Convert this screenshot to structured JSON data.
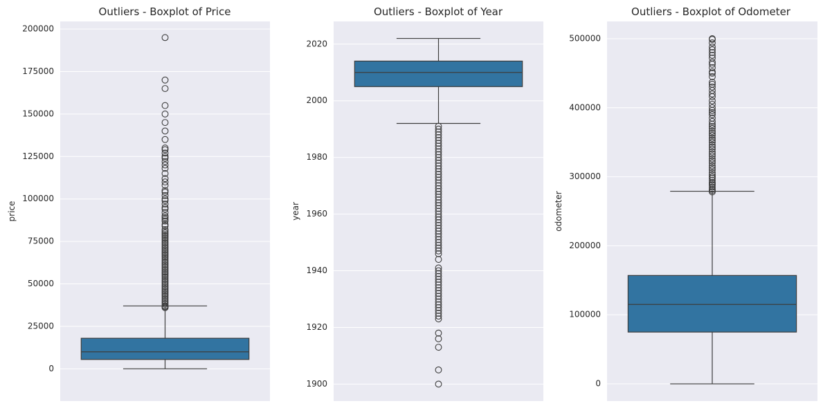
{
  "chart_data": [
    {
      "type": "box",
      "title": "Outliers - Boxplot of Price",
      "ylabel": "price",
      "ylim": [
        -19000,
        204500
      ],
      "yticks": [
        0,
        25000,
        50000,
        75000,
        100000,
        125000,
        150000,
        175000,
        200000
      ],
      "ytick_labels": [
        "0",
        "25000",
        "50000",
        "75000",
        "100000",
        "125000",
        "150000",
        "175000",
        "200000"
      ],
      "color": "#3274a1",
      "box": {
        "whisker_low": 0,
        "q1": 5500,
        "median": 10000,
        "q3": 18000,
        "whisker_high": 37000
      },
      "outliers": [
        36000,
        36500,
        37000,
        38000,
        39000,
        40000,
        41000,
        42000,
        43000,
        44000,
        45000,
        46000,
        47000,
        48000,
        49000,
        50000,
        51000,
        52000,
        53000,
        54000,
        55000,
        56000,
        57000,
        58000,
        59000,
        60000,
        61000,
        62000,
        63000,
        64000,
        65000,
        66000,
        67000,
        68000,
        69000,
        70000,
        71000,
        72000,
        73000,
        74000,
        75000,
        76000,
        77000,
        78000,
        79000,
        80000,
        81000,
        82000,
        84000,
        85000,
        87000,
        88000,
        89000,
        90000,
        92000,
        94000,
        95000,
        97000,
        99000,
        100000,
        102000,
        104000,
        105000,
        108000,
        110000,
        112000,
        115000,
        118000,
        120000,
        122000,
        124000,
        125000,
        127000,
        129000,
        130000,
        135000,
        140000,
        145000,
        150000,
        155000,
        165000,
        170000,
        195000
      ]
    },
    {
      "type": "box",
      "title": "Outliers - Boxplot of Year",
      "ylabel": "year",
      "ylim": [
        1894,
        2028
      ],
      "yticks": [
        1900,
        1920,
        1940,
        1960,
        1980,
        2000,
        2020
      ],
      "ytick_labels": [
        "1900",
        "1920",
        "1940",
        "1960",
        "1980",
        "2000",
        "2020"
      ],
      "color": "#3274a1",
      "box": {
        "whisker_low": 1992,
        "q1": 2005,
        "median": 2010,
        "q3": 2014,
        "whisker_high": 2022
      },
      "outliers": [
        1900,
        1905,
        1913,
        1916,
        1918,
        1923,
        1924,
        1925,
        1926,
        1927,
        1928,
        1929,
        1930,
        1931,
        1932,
        1933,
        1934,
        1935,
        1936,
        1937,
        1938,
        1939,
        1940,
        1941,
        1944,
        1946,
        1947,
        1948,
        1949,
        1950,
        1951,
        1952,
        1953,
        1954,
        1955,
        1956,
        1957,
        1958,
        1959,
        1960,
        1961,
        1962,
        1963,
        1964,
        1965,
        1966,
        1967,
        1968,
        1969,
        1970,
        1971,
        1972,
        1973,
        1974,
        1975,
        1976,
        1977,
        1978,
        1979,
        1980,
        1981,
        1982,
        1983,
        1984,
        1985,
        1986,
        1987,
        1988,
        1989,
        1990,
        1991
      ]
    },
    {
      "type": "box",
      "title": "Outliers - Boxplot of Odometer",
      "ylabel": "odometer",
      "ylim": [
        -25000,
        525000
      ],
      "yticks": [
        0,
        100000,
        200000,
        300000,
        400000,
        500000
      ],
      "ytick_labels": [
        "0",
        "100000",
        "200000",
        "300000",
        "400000",
        "500000"
      ],
      "color": "#3274a1",
      "box": {
        "whisker_low": 0,
        "q1": 75000,
        "median": 115000,
        "q3": 157000,
        "whisker_high": 279000
      },
      "outliers": [
        278000,
        280000,
        282000,
        285000,
        288000,
        290000,
        292000,
        295000,
        298000,
        300000,
        303000,
        306000,
        310000,
        313000,
        316000,
        320000,
        323000,
        326000,
        330000,
        333000,
        336000,
        340000,
        343000,
        346000,
        350000,
        353000,
        356000,
        360000,
        363000,
        366000,
        370000,
        373000,
        376000,
        380000,
        385000,
        390000,
        393000,
        396000,
        400000,
        405000,
        410000,
        416000,
        420000,
        425000,
        430000,
        434000,
        437000,
        445000,
        450000,
        452000,
        458000,
        463000,
        466000,
        472000,
        476000,
        480000,
        484000,
        488000,
        494000,
        499000,
        500000
      ]
    }
  ]
}
